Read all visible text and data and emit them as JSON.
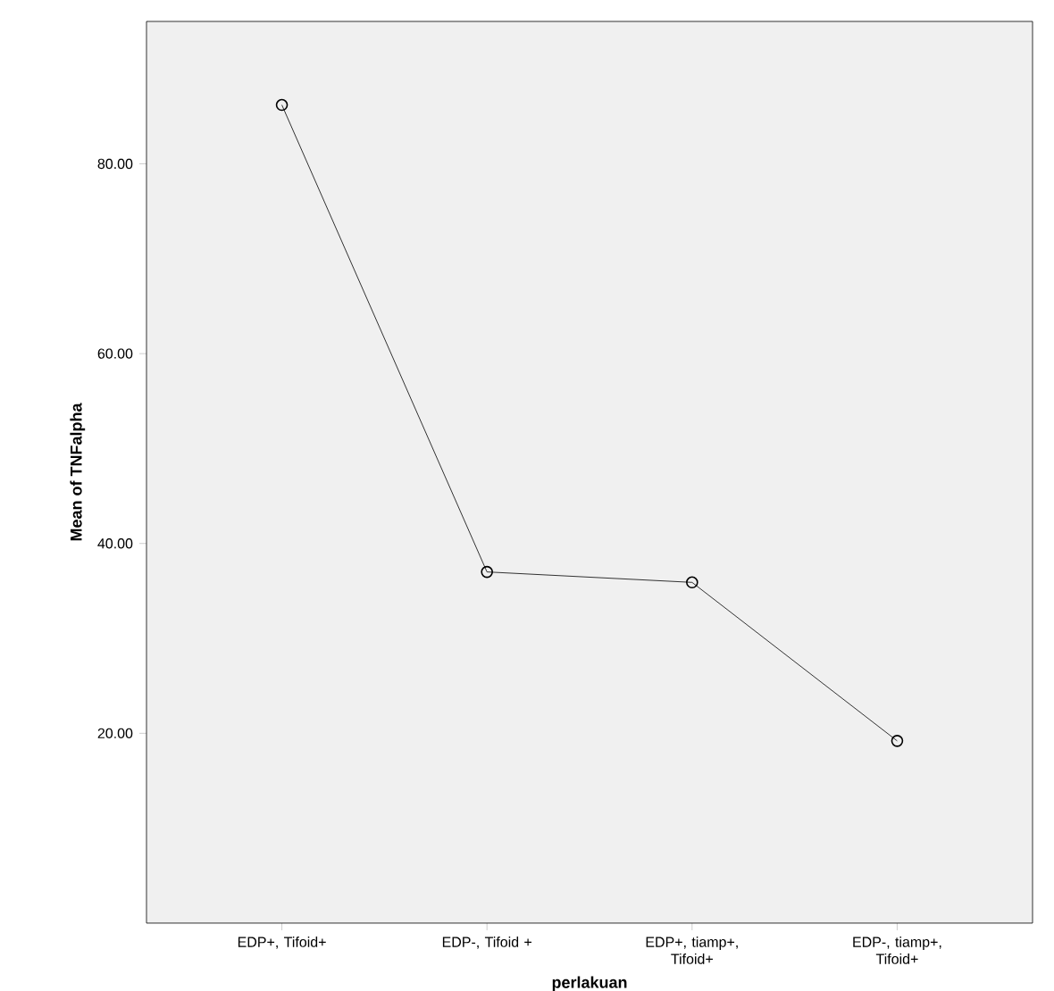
{
  "chart_data": {
    "type": "line",
    "xlabel": "perlakuan",
    "ylabel": "Mean of TNFalpha",
    "categories": [
      "EDP+, Tifoid+",
      "EDP-, Tifoid +",
      "EDP+, tiamp+, Tifoid+",
      "EDP-, tiamp+, Tifoid+"
    ],
    "values": [
      86.2,
      37.0,
      35.9,
      19.2
    ],
    "color": "#000000",
    "marker": "circle",
    "line_style": "solid",
    "ylim": [
      0,
      95
    ],
    "yticks": [
      {
        "value": 20,
        "label": "20.00"
      },
      {
        "value": 40,
        "label": "40.00"
      },
      {
        "value": 60,
        "label": "60.00"
      },
      {
        "value": 80,
        "label": "80.00"
      }
    ],
    "grid": false
  }
}
